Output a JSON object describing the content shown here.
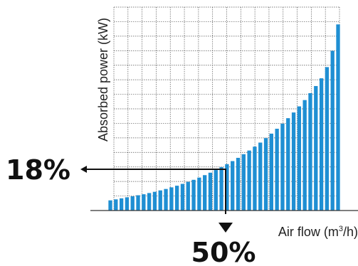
{
  "chart_data": {
    "type": "bar",
    "title": "",
    "ylabel": "Absorbed power (kW)",
    "xlabel_prefix": "Air flow (m",
    "xlabel_sup": "3",
    "xlabel_suffix": "/h)",
    "grid": true,
    "bar_color": "#1f8fd3",
    "arrow_color": "#111111",
    "ylim": [
      0,
      100
    ],
    "values": [
      5,
      5.5,
      6,
      6.5,
      7,
      7.5,
      8,
      8.6,
      9.2,
      9.9,
      10.6,
      11.4,
      12.2,
      13.1,
      14.1,
      15.1,
      16.2,
      17.4,
      18.6,
      19.9,
      21.3,
      22.8,
      24.3,
      25.9,
      27.7,
      29.5,
      31.4,
      33.4,
      35.6,
      37.8,
      40.2,
      42.7,
      45.4,
      48.2,
      51.2,
      54.3,
      57.7,
      61.2,
      65,
      70.5,
      78.5,
      91.5
    ],
    "annotations": {
      "power_reduction": "18%",
      "flow_reduction": "50%"
    }
  }
}
